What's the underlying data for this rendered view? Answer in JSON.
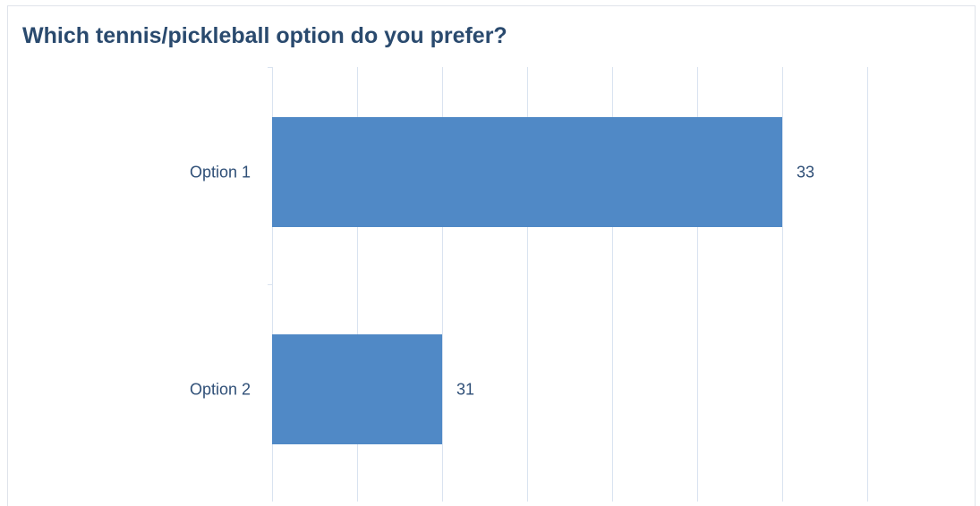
{
  "chart_data": {
    "type": "bar",
    "orientation": "horizontal",
    "title": "Which tennis/pickleball option do you prefer?",
    "categories": [
      "Option 1",
      "Option 2"
    ],
    "values": [
      33,
      31
    ],
    "data_labels": [
      "33",
      "31"
    ],
    "xlim": [
      30,
      33.5
    ],
    "grid": true,
    "legend": "none",
    "bar_color": "#5089c6",
    "grid_color": "#d9e3f0",
    "text_color": "#2f4f77",
    "title_color": "#2a4a6e"
  }
}
